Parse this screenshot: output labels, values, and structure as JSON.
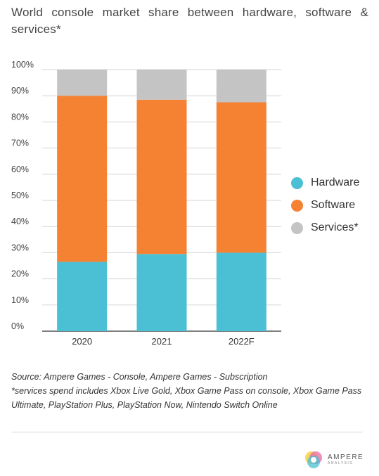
{
  "title": "World console market share between hardware, software & services*",
  "chart_data": {
    "type": "bar",
    "stacked": true,
    "categories": [
      "2020",
      "2021",
      "2022F"
    ],
    "series": [
      {
        "name": "Hardware",
        "color": "#4bbfd3",
        "values": [
          26.5,
          29.5,
          30
        ]
      },
      {
        "name": "Software",
        "color": "#f58232",
        "values": [
          63.5,
          59,
          57.5
        ]
      },
      {
        "name": "Services*",
        "color": "#c4c4c4",
        "values": [
          10,
          11.5,
          12.5
        ]
      }
    ],
    "y_ticks": [
      "0%",
      "10%",
      "20%",
      "30%",
      "40%",
      "50%",
      "60%",
      "70%",
      "80%",
      "90%",
      "100%"
    ],
    "ylim": [
      0,
      100
    ],
    "grid": true,
    "legend_position": "right"
  },
  "notes": {
    "source": "Source: Ampere Games - Console, Ampere Games - Subscription",
    "footnote": "*services spend includes Xbox Live Gold, Xbox Game Pass on console, Xbox Game Pass Ultimate, PlayStation Plus, PlayStation Now, Nintendo Switch Online"
  },
  "logo": {
    "name": "AMPERE",
    "sub": "ANALYSIS"
  }
}
